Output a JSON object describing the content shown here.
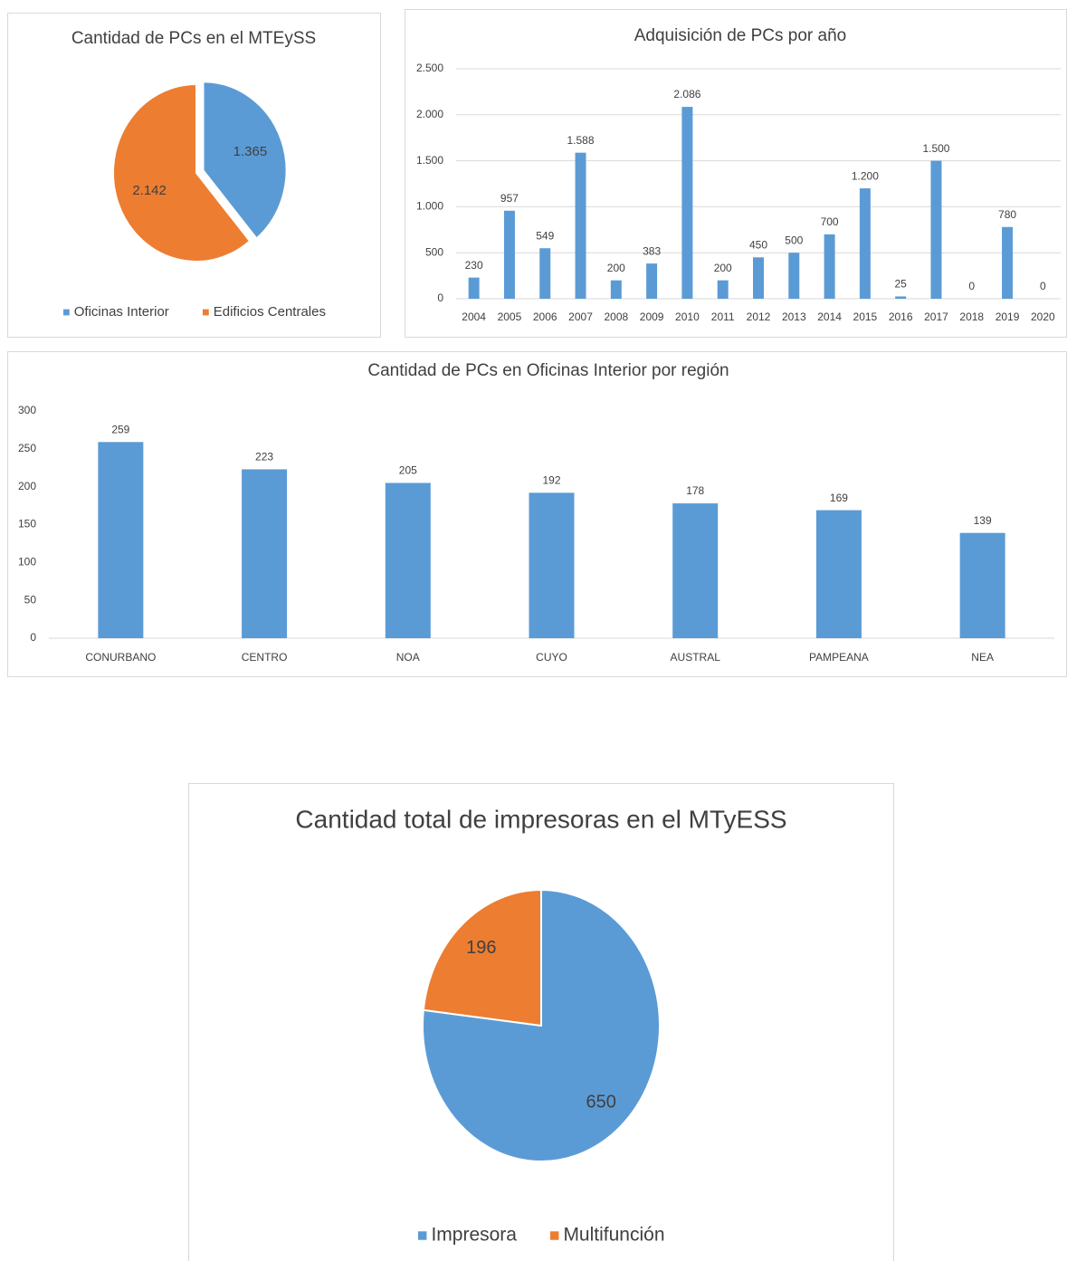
{
  "chart_data": [
    {
      "type": "pie",
      "title": "Cantidad de PCs en el MTEySS",
      "categories": [
        "Oficinas Interior",
        "Edificios Centrales"
      ],
      "values": [
        1365,
        2142
      ],
      "value_labels": [
        "1.365",
        "2.142"
      ],
      "colors": [
        "#5b9bd5",
        "#ed7d31"
      ],
      "legend": "bottom"
    },
    {
      "type": "bar",
      "title": "Adquisición de PCs por año",
      "categories": [
        "2004",
        "2005",
        "2006",
        "2007",
        "2008",
        "2009",
        "2010",
        "2011",
        "2012",
        "2013",
        "2014",
        "2015",
        "2016",
        "2017",
        "2018",
        "2019",
        "2020"
      ],
      "values": [
        230,
        957,
        549,
        1588,
        200,
        383,
        2086,
        200,
        450,
        500,
        700,
        1200,
        25,
        1500,
        0,
        780,
        0
      ],
      "value_labels": [
        "230",
        "957",
        "549",
        "1.588",
        "200",
        "383",
        "2.086",
        "200",
        "450",
        "500",
        "700",
        "1.200",
        "25",
        "1.500",
        "0",
        "780",
        "0"
      ],
      "color": "#5b9bd5",
      "ylim": [
        0,
        2500
      ],
      "yticks": [
        0,
        500,
        {
          "value": 1000,
          "label": "1.000"
        },
        {
          "value": 1500,
          "label": "1.500"
        },
        {
          "value": 2000,
          "label": "2.000"
        },
        {
          "value": 2500,
          "label": "2.500"
        }
      ],
      "grid": true
    },
    {
      "type": "bar",
      "title": "Cantidad de PCs en Oficinas Interior por región",
      "categories": [
        "CONURBANO",
        "CENTRO",
        "NOA",
        "CUYO",
        "AUSTRAL",
        "PAMPEANA",
        "NEA"
      ],
      "values": [
        259,
        223,
        205,
        192,
        178,
        169,
        139
      ],
      "color": "#5b9bd5",
      "ylim": [
        0,
        300
      ],
      "yticks": [
        0,
        50,
        100,
        150,
        200,
        250,
        300
      ],
      "grid": false
    },
    {
      "type": "pie",
      "title": "Cantidad total de impresoras en el MTyESS",
      "categories": [
        "Impresora",
        "Multifunción"
      ],
      "values": [
        650,
        196
      ],
      "colors": [
        "#5b9bd5",
        "#ed7d31"
      ],
      "legend": "bottom"
    }
  ]
}
